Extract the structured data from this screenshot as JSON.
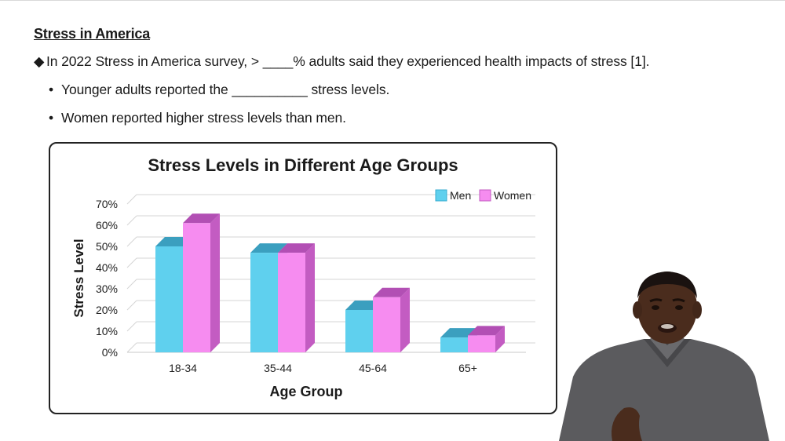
{
  "slide": {
    "heading": "Stress in America",
    "bullets": [
      {
        "marker": "◆",
        "text": "In 2022 Stress in America survey, > ____% adults said they experienced health impacts of stress [1]."
      },
      {
        "marker": "•",
        "text": "Younger adults reported the __________ stress levels."
      },
      {
        "marker": "•",
        "text": "Women reported higher stress levels than men."
      }
    ]
  },
  "chart_data": {
    "type": "bar",
    "title": "Stress Levels in Different Age Groups",
    "xlabel": "Age Group",
    "ylabel": "Stress Level",
    "categories": [
      "18-34",
      "35-44",
      "45-64",
      "65+"
    ],
    "series": [
      {
        "name": "Men",
        "values": [
          50,
          47,
          20,
          7
        ]
      },
      {
        "name": "Women",
        "values": [
          61,
          47,
          26,
          8
        ]
      }
    ],
    "ylim": [
      0,
      70
    ],
    "yticks": [
      "0%",
      "10%",
      "20%",
      "30%",
      "40%",
      "50%",
      "60%",
      "70%"
    ],
    "grid": true,
    "legend": "top-right",
    "colors": {
      "men_front": "#5fd0ee",
      "men_side": "#3aaed0",
      "men_top": "#3b9fbf",
      "women_front": "#f68cf0",
      "women_side": "#c35cc2",
      "women_top": "#b24fb4"
    }
  },
  "presenter": {
    "icon": "presenter-avatar"
  }
}
